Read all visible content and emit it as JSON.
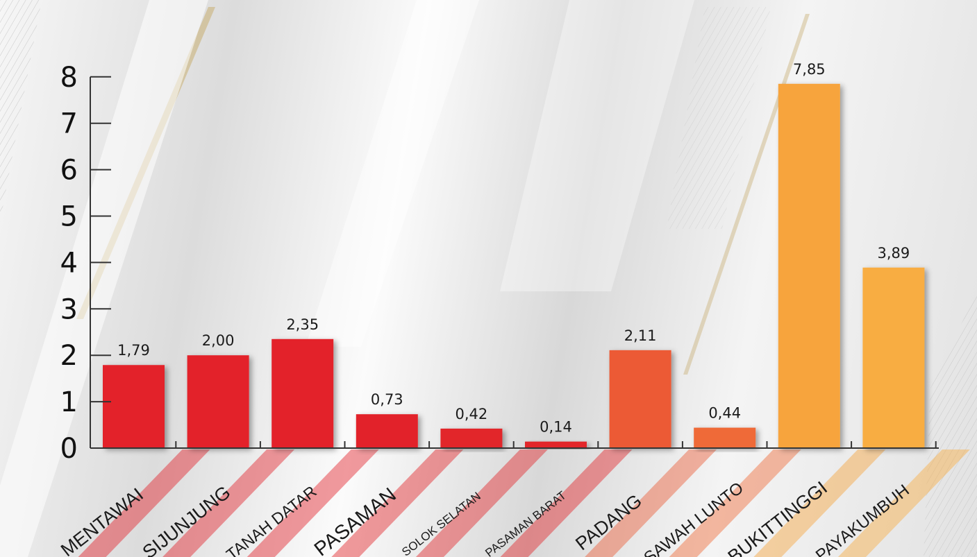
{
  "chart_data": {
    "type": "bar",
    "categories": [
      "MENTAWAI",
      "SIJUNJUNG",
      "TANAH DATAR",
      "PASAMAN",
      "SOLOK SELATAN",
      "PASAMAN BARAT",
      "PADANG",
      "SAWAH LUNTO",
      "BUKITTINGGI",
      "PAYAKUMBUH"
    ],
    "values": [
      1.79,
      2.0,
      2.35,
      0.73,
      0.42,
      0.14,
      2.11,
      0.44,
      7.85,
      3.89
    ],
    "value_labels": [
      "1,79",
      "2,00",
      "2,35",
      "0,73",
      "0,42",
      "0,14",
      "2,11",
      "0,44",
      "7,85",
      "3,89"
    ],
    "bar_colors": [
      "#e3212b",
      "#e3212b",
      "#e3222b",
      "#e22429",
      "#e2252a",
      "#e2262a",
      "#ec5a35",
      "#ef6b38",
      "#f7a43c",
      "#f8ad42"
    ],
    "yticks": [
      "0",
      "1",
      "2",
      "3",
      "4",
      "5",
      "6",
      "7",
      "8"
    ],
    "ylim": [
      0,
      8
    ],
    "title": "",
    "xlabel": "",
    "ylabel": "",
    "grid": false,
    "legend": "none"
  }
}
